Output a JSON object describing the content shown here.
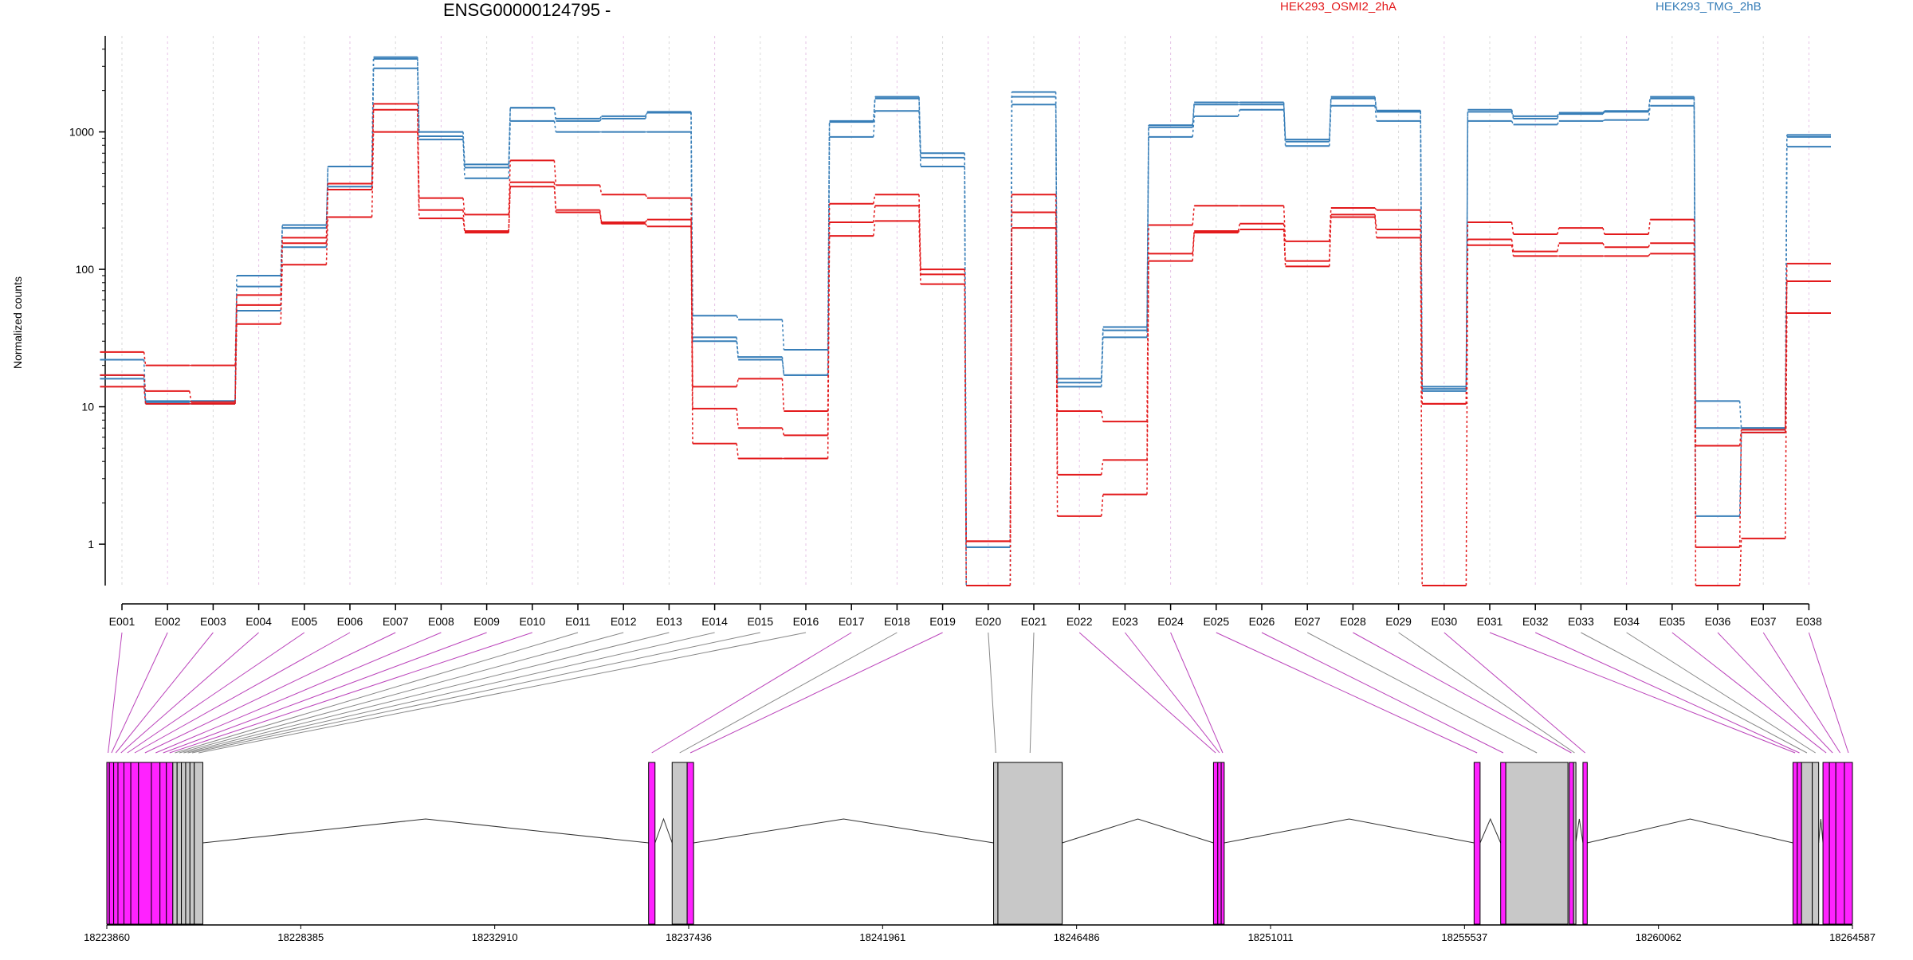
{
  "chart_data": {
    "type": "line",
    "title": "ENSG00000124795 -",
    "ylabel": "Normalized counts",
    "y_scale": "log",
    "ylim": [
      0.5,
      5000
    ],
    "yticks": [
      1,
      10,
      100,
      1000
    ],
    "legend": {
      "placement": "top",
      "entries": [
        "HEK293_OSMI2_2hA",
        "HEK293_TMG_2hB"
      ]
    },
    "colors": {
      "HEK293_OSMI2_2hA": "#e31a1c",
      "HEK293_TMG_2hB": "#377eb8"
    },
    "categories": [
      "E001",
      "E002",
      "E003",
      "E004",
      "E005",
      "E006",
      "E007",
      "E008",
      "E009",
      "E010",
      "E011",
      "E012",
      "E013",
      "E014",
      "E015",
      "E016",
      "E017",
      "E018",
      "E019",
      "E020",
      "E021",
      "E022",
      "E023",
      "E024",
      "E025",
      "E026",
      "E027",
      "E028",
      "E029",
      "E030",
      "E031",
      "E032",
      "E033",
      "E034",
      "E035",
      "E036",
      "E037",
      "E038"
    ],
    "series": [
      {
        "name": "HEK293_TMG_2hB",
        "color": "#377eb8",
        "values": [
          22,
          11,
          11,
          90,
          210,
          560,
          3500,
          1000,
          580,
          1500,
          1250,
          1300,
          1400,
          46,
          43,
          26,
          1200,
          1800,
          700,
          0.95,
          1950,
          16,
          38,
          1120,
          1640,
          1640,
          880,
          1800,
          1430,
          14,
          1450,
          1300,
          1380,
          1420,
          1800,
          11,
          7,
          950
        ]
      },
      {
        "name": "HEK293_TMG_2hB",
        "color": "#377eb8",
        "values": [
          17,
          10.8,
          11,
          75,
          200,
          560,
          3400,
          930,
          550,
          1500,
          1200,
          1250,
          1380,
          32,
          23,
          17,
          1180,
          1750,
          650,
          0.95,
          1800,
          15,
          36,
          1080,
          1580,
          1580,
          850,
          1750,
          1400,
          13.5,
          1400,
          1250,
          1350,
          1400,
          1750,
          7,
          7,
          920
        ]
      },
      {
        "name": "HEK293_TMG_2hB",
        "color": "#377eb8",
        "values": [
          16,
          10.5,
          10.5,
          50,
          145,
          400,
          2900,
          880,
          460,
          1200,
          1000,
          1000,
          1000,
          30,
          22,
          17,
          920,
          1420,
          560,
          0.5,
          1580,
          14,
          32,
          920,
          1300,
          1450,
          790,
          1550,
          1200,
          13,
          1200,
          1130,
          1200,
          1220,
          1550,
          1.6,
          6.5,
          780
        ]
      },
      {
        "name": "HEK293_OSMI2_2hA",
        "color": "#e31a1c",
        "values": [
          25,
          20,
          20,
          65,
          170,
          420,
          1600,
          330,
          250,
          620,
          410,
          350,
          330,
          14,
          16,
          9.3,
          300,
          350,
          100,
          1.05,
          350,
          9.3,
          7.8,
          210,
          290,
          290,
          160,
          280,
          270,
          10.5,
          220,
          180,
          200,
          180,
          230,
          5.2,
          6.8,
          110
        ]
      },
      {
        "name": "HEK293_OSMI2_2hA",
        "color": "#e31a1c",
        "values": [
          17,
          13,
          10.8,
          55,
          155,
          380,
          1450,
          270,
          190,
          430,
          270,
          220,
          230,
          9.7,
          7,
          6.2,
          220,
          290,
          92,
          1.05,
          260,
          3.2,
          4.1,
          130,
          190,
          215,
          115,
          250,
          195,
          10.5,
          165,
          135,
          155,
          145,
          155,
          0.95,
          6.5,
          82
        ]
      },
      {
        "name": "HEK293_OSMI2_2hA",
        "color": "#e31a1c",
        "values": [
          14,
          10.5,
          10.5,
          40,
          108,
          240,
          1000,
          235,
          185,
          400,
          260,
          215,
          205,
          5.4,
          4.2,
          4.2,
          175,
          225,
          78,
          0.5,
          200,
          1.6,
          2.3,
          115,
          185,
          195,
          105,
          240,
          170,
          0.5,
          150,
          125,
          125,
          125,
          130,
          0.5,
          1.1,
          48
        ]
      }
    ],
    "gene_model": {
      "coord_labels": [
        "18223860",
        "18228385",
        "18232910",
        "18237436",
        "18241961",
        "18246486",
        "18251011",
        "18255537",
        "18260062",
        "18264587"
      ],
      "coord_min": 18223860,
      "coord_max": 18264587,
      "exon_bins": [
        [
          18223860,
          18223920,
          "sig"
        ],
        [
          18223920,
          18224020,
          "sig"
        ],
        [
          18224020,
          18224120,
          "sig"
        ],
        [
          18224120,
          18224260,
          "sig"
        ],
        [
          18224260,
          18224420,
          "sig"
        ],
        [
          18224420,
          18224600,
          "sig"
        ],
        [
          18224600,
          18224900,
          "sig"
        ],
        [
          18224900,
          18225100,
          "sig"
        ],
        [
          18225100,
          18225250,
          "sig"
        ],
        [
          18225250,
          18225400,
          "sig"
        ],
        [
          18225400,
          18225500,
          "ns"
        ],
        [
          18225500,
          18225600,
          "ns"
        ],
        [
          18225600,
          18225700,
          "ns"
        ],
        [
          18225700,
          18225800,
          "ns"
        ],
        [
          18225800,
          18225900,
          "ns"
        ],
        [
          18225900,
          18226100,
          "ns"
        ],
        [
          18236500,
          18236650,
          "sig"
        ],
        [
          18237050,
          18237400,
          "ns"
        ],
        [
          18237400,
          18237550,
          "sig"
        ],
        [
          18244550,
          18244650,
          "ns"
        ],
        [
          18244650,
          18246150,
          "ns"
        ],
        [
          18249680,
          18249780,
          "sig"
        ],
        [
          18249780,
          18249860,
          "sig"
        ],
        [
          18249860,
          18249930,
          "sig"
        ],
        [
          18255760,
          18255900,
          "sig"
        ],
        [
          18256380,
          18256500,
          "sig"
        ],
        [
          18256500,
          18257950,
          "ns"
        ],
        [
          18257980,
          18258080,
          "sig"
        ],
        [
          18258080,
          18258130,
          "ns"
        ],
        [
          18258300,
          18258400,
          "sig"
        ],
        [
          18263200,
          18263300,
          "sig"
        ],
        [
          18263300,
          18263400,
          "sig"
        ],
        [
          18263400,
          18263650,
          "ns"
        ],
        [
          18263650,
          18263800,
          "ns"
        ],
        [
          18263900,
          18264050,
          "sig"
        ],
        [
          18264050,
          18264200,
          "sig"
        ],
        [
          18264200,
          18264400,
          "sig"
        ],
        [
          18264400,
          18264587,
          "sig"
        ]
      ],
      "colors": {
        "sig": "#ff22ff",
        "ns": "#c8c8c8"
      }
    }
  }
}
